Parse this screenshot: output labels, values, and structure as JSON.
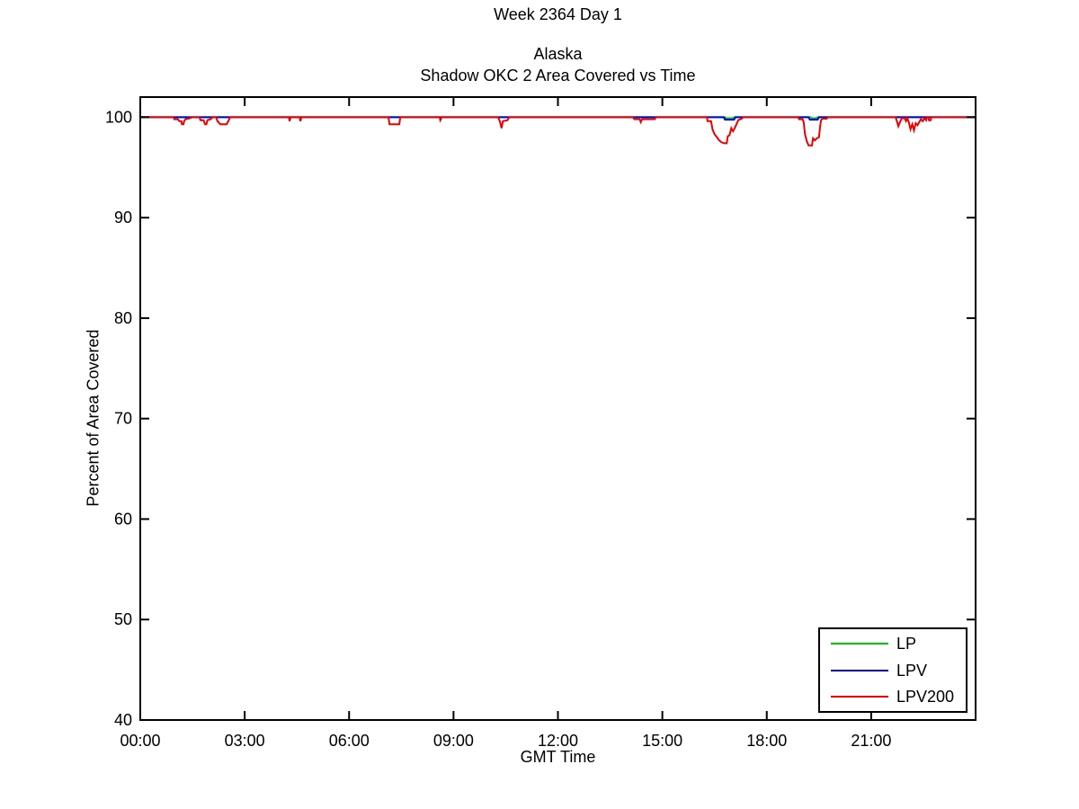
{
  "figure": {
    "suptitle": "Week 2364 Day 1",
    "title_line1": "Alaska",
    "title_line2": "Shadow OKC 2 Area Covered vs Time",
    "xlabel": "GMT Time",
    "ylabel": "Percent of Area Covered"
  },
  "chart_data": {
    "type": "line",
    "suptitle": "Week 2364 Day 1",
    "title": "Alaska — Shadow OKC 2 Area Covered vs Time",
    "xlabel": "GMT Time",
    "ylabel": "Percent of Area Covered",
    "x_unit": "hours GMT",
    "y_unit": "percent",
    "xlim": [
      0,
      24
    ],
    "ylim": [
      40,
      102
    ],
    "grid": false,
    "axis_color": "#000000",
    "background": "#ffffff",
    "xticks": {
      "values": [
        0,
        3,
        6,
        9,
        12,
        15,
        18,
        21
      ],
      "labels": [
        "00:00",
        "03:00",
        "06:00",
        "09:00",
        "12:00",
        "15:00",
        "18:00",
        "21:00"
      ]
    },
    "yticks": {
      "values": [
        40,
        50,
        60,
        70,
        80,
        90,
        100
      ],
      "labels": [
        "40",
        "50",
        "60",
        "70",
        "80",
        "90",
        "100"
      ]
    },
    "legend": {
      "position": "lower-right"
    },
    "series": [
      {
        "name": "LP",
        "color": "#00CC00",
        "points": [
          [
            0,
            100
          ],
          [
            16.8,
            100
          ],
          [
            16.84,
            99.9
          ],
          [
            17.02,
            99.9
          ],
          [
            17.06,
            100
          ],
          [
            19.26,
            100
          ],
          [
            19.3,
            99.9
          ],
          [
            19.42,
            99.9
          ],
          [
            19.46,
            100
          ],
          [
            24,
            100
          ]
        ]
      },
      {
        "name": "LPV",
        "color": "#0000DD",
        "points": [
          [
            0,
            100
          ],
          [
            16.76,
            100
          ],
          [
            16.8,
            99.75
          ],
          [
            17.06,
            99.75
          ],
          [
            17.1,
            100
          ],
          [
            19.2,
            100
          ],
          [
            19.24,
            99.75
          ],
          [
            19.46,
            99.75
          ],
          [
            19.5,
            100
          ],
          [
            24,
            100
          ]
        ]
      },
      {
        "name": "LPV200",
        "color": "#EE0000",
        "points": [
          [
            0,
            100
          ],
          [
            0.95,
            100
          ],
          [
            0.98,
            99.8
          ],
          [
            1.08,
            99.8
          ],
          [
            1.12,
            99.6
          ],
          [
            1.18,
            99.6
          ],
          [
            1.2,
            99.3
          ],
          [
            1.24,
            99.3
          ],
          [
            1.26,
            99.6
          ],
          [
            1.3,
            99.8
          ],
          [
            1.42,
            99.9
          ],
          [
            1.5,
            100
          ],
          [
            1.7,
            100
          ],
          [
            1.73,
            99.7
          ],
          [
            1.82,
            99.7
          ],
          [
            1.86,
            99.3
          ],
          [
            1.9,
            99.3
          ],
          [
            1.93,
            99.7
          ],
          [
            2.02,
            99.8
          ],
          [
            2.08,
            100
          ],
          [
            2.18,
            100
          ],
          [
            2.22,
            99.6
          ],
          [
            2.3,
            99.3
          ],
          [
            2.48,
            99.3
          ],
          [
            2.53,
            99.6
          ],
          [
            2.58,
            100
          ],
          [
            4.27,
            100
          ],
          [
            4.29,
            99.6
          ],
          [
            4.32,
            100
          ],
          [
            4.58,
            100
          ],
          [
            4.6,
            99.6
          ],
          [
            4.63,
            100
          ],
          [
            7.13,
            100
          ],
          [
            7.16,
            99.3
          ],
          [
            7.44,
            99.3
          ],
          [
            7.47,
            100
          ],
          [
            8.6,
            100
          ],
          [
            8.62,
            99.7
          ],
          [
            8.66,
            100
          ],
          [
            10.28,
            100
          ],
          [
            10.33,
            99.6
          ],
          [
            10.38,
            98.9
          ],
          [
            10.42,
            99.6
          ],
          [
            10.55,
            99.7
          ],
          [
            10.6,
            100
          ],
          [
            14.15,
            100
          ],
          [
            14.2,
            99.8
          ],
          [
            14.35,
            99.8
          ],
          [
            14.38,
            99.5
          ],
          [
            14.42,
            99.8
          ],
          [
            14.78,
            99.8
          ],
          [
            14.82,
            100
          ],
          [
            16.28,
            100
          ],
          [
            16.3,
            99.6
          ],
          [
            16.4,
            99.6
          ],
          [
            16.44,
            98.8
          ],
          [
            16.5,
            98.3
          ],
          [
            16.57,
            98.0
          ],
          [
            16.63,
            97.7
          ],
          [
            16.7,
            97.5
          ],
          [
            16.78,
            97.4
          ],
          [
            16.85,
            97.4
          ],
          [
            16.88,
            98.1
          ],
          [
            16.93,
            98.2
          ],
          [
            16.98,
            98.9
          ],
          [
            17.03,
            98.6
          ],
          [
            17.08,
            98.9
          ],
          [
            17.13,
            99.3
          ],
          [
            17.18,
            99.7
          ],
          [
            17.28,
            99.85
          ],
          [
            17.33,
            100
          ],
          [
            18.9,
            100
          ],
          [
            18.93,
            99.8
          ],
          [
            19.03,
            99.8
          ],
          [
            19.06,
            99.5
          ],
          [
            19.1,
            98.3
          ],
          [
            19.15,
            97.6
          ],
          [
            19.2,
            97.2
          ],
          [
            19.3,
            97.2
          ],
          [
            19.33,
            97.9
          ],
          [
            19.38,
            97.7
          ],
          [
            19.44,
            97.9
          ],
          [
            19.5,
            98.0
          ],
          [
            19.53,
            99.0
          ],
          [
            19.56,
            99.7
          ],
          [
            19.6,
            99.85
          ],
          [
            19.72,
            99.85
          ],
          [
            19.76,
            100
          ],
          [
            21.7,
            100
          ],
          [
            21.74,
            99.6
          ],
          [
            21.78,
            99.1
          ],
          [
            21.84,
            99.6
          ],
          [
            21.88,
            99.9
          ],
          [
            21.96,
            99.9
          ],
          [
            22.0,
            99.6
          ],
          [
            22.04,
            99.9
          ],
          [
            22.08,
            99.5
          ],
          [
            22.13,
            98.8
          ],
          [
            22.18,
            99.3
          ],
          [
            22.23,
            98.7
          ],
          [
            22.28,
            99.4
          ],
          [
            22.33,
            99.2
          ],
          [
            22.38,
            99.5
          ],
          [
            22.43,
            99.8
          ],
          [
            22.48,
            99.6
          ],
          [
            22.53,
            99.9
          ],
          [
            22.58,
            99.7
          ],
          [
            22.6,
            100
          ],
          [
            22.64,
            100
          ],
          [
            22.66,
            99.7
          ],
          [
            22.71,
            99.7
          ],
          [
            22.73,
            100
          ],
          [
            24,
            100
          ]
        ]
      }
    ]
  }
}
